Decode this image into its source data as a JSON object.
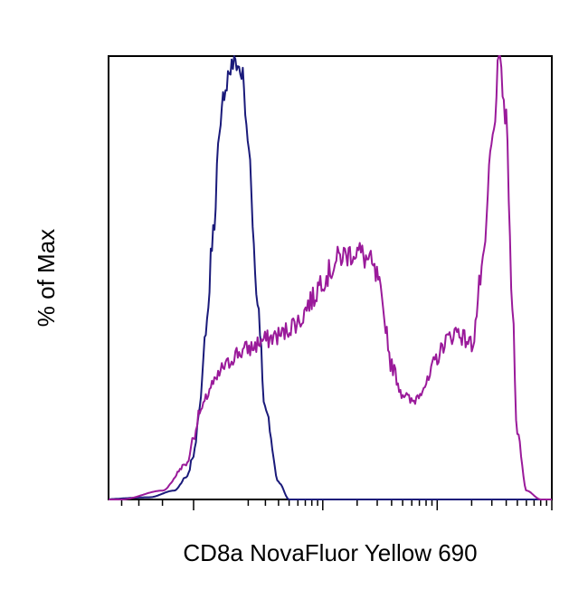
{
  "chart_data": {
    "type": "line",
    "title": "",
    "xlabel": "CD8a NovaFluor Yellow 690",
    "ylabel": "% of Max",
    "x_scale": "log",
    "xlim": [
      -400,
      100000
    ],
    "ylim": [
      0,
      100
    ],
    "grid": false,
    "legend": "none",
    "series": [
      {
        "color": "#1a1a7a",
        "x": [
          -500,
          -150,
          -60,
          -20,
          0,
          20,
          40,
          60,
          80,
          100,
          120,
          140,
          170,
          200,
          250,
          300,
          400,
          500
        ],
        "y": [
          0,
          0.5,
          2,
          5,
          10,
          22,
          40,
          60,
          80,
          93,
          97,
          99,
          96,
          80,
          45,
          20,
          4,
          0
        ]
      },
      {
        "color": "#9a1a9a",
        "x": [
          -300,
          -100,
          -20,
          0,
          20,
          60,
          100,
          150,
          200,
          300,
          400,
          600,
          800,
          1000,
          1500,
          2000,
          2500,
          3000,
          3500,
          4000,
          5000,
          6000,
          8000,
          10000,
          12000,
          15000,
          18000,
          20000,
          25000,
          30000,
          35000,
          40000,
          45000,
          50000,
          60000,
          80000
        ],
        "y": [
          0,
          2,
          8,
          14,
          20,
          26,
          30,
          33,
          34,
          36,
          37,
          40,
          45,
          50,
          55,
          56,
          54,
          50,
          40,
          30,
          24,
          22,
          26,
          32,
          36,
          38,
          36,
          35,
          52,
          80,
          99,
          85,
          45,
          15,
          2,
          0
        ]
      }
    ]
  }
}
